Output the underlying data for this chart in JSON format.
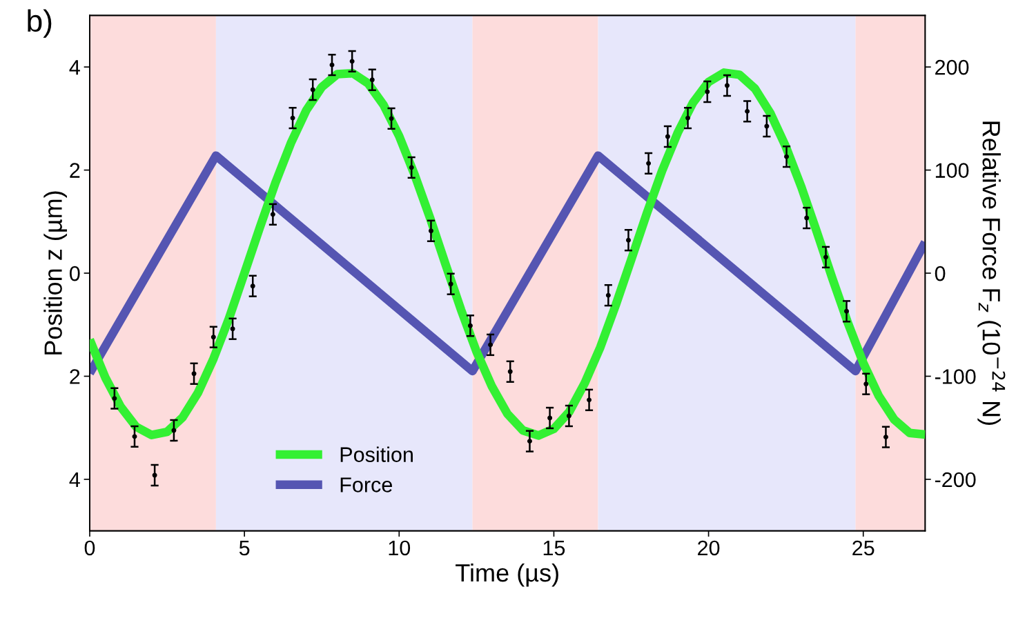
{
  "chart_data": {
    "type": "line",
    "xlabel": "Time (µs)",
    "ylabel": "Position z (µm)",
    "y2label": "Relative Force F$_{z}$ (10$^{−24}$ N)",
    "annotations": [
      "b)"
    ],
    "xlim": [
      0,
      27
    ],
    "xticks": [
      0,
      5,
      10,
      15,
      20,
      25
    ],
    "ylim": [
      -5,
      5
    ],
    "yticks": [
      {
        "value": -4,
        "label": "4"
      },
      {
        "value": -2,
        "label": "2"
      },
      0,
      2,
      4
    ],
    "y2lim": [
      -250,
      250
    ],
    "y2ticks": [
      -200,
      -100,
      0,
      100,
      200
    ],
    "grid": false,
    "legend": "bottom left",
    "line_style": "solid",
    "marker": "none",
    "bands": [
      {
        "axis": "x",
        "from": 0,
        "to": 4.08,
        "color": "#fddcdc"
      },
      {
        "axis": "x",
        "from": 4.08,
        "to": 12.37,
        "color": "#e7e7fb"
      },
      {
        "axis": "x",
        "from": 12.37,
        "to": 16.43,
        "color": "#fddcdc"
      },
      {
        "axis": "x",
        "from": 16.43,
        "to": 24.75,
        "color": "#e7e7fb"
      },
      {
        "axis": "x",
        "from": 24.75,
        "to": 27,
        "color": "#fddcdc"
      }
    ],
    "series": [
      {
        "name": "Position",
        "type": "line",
        "color": "#33f033",
        "x": [
          0,
          0.5,
          1,
          1.5,
          2,
          2.5,
          3,
          3.5,
          4,
          4.5,
          5,
          5.5,
          6,
          6.5,
          7,
          7.5,
          8,
          8.5,
          9,
          9.5,
          10,
          10.5,
          11,
          11.5,
          12,
          12.5,
          13,
          13.5,
          14,
          14.5,
          15,
          15.5,
          16,
          16.5,
          17,
          17.5,
          18,
          18.5,
          19,
          19.5,
          20,
          20.5,
          21,
          21.5,
          22,
          22.5,
          23,
          23.5,
          24,
          24.5,
          25,
          25.5,
          26,
          26.5,
          27
        ],
        "values": [
          -1.29,
          -2.02,
          -2.59,
          -2.98,
          -3.14,
          -3.08,
          -2.8,
          -2.32,
          -1.66,
          -0.88,
          0.0,
          0.89,
          1.75,
          2.52,
          3.16,
          3.61,
          3.86,
          3.88,
          3.68,
          3.26,
          2.66,
          1.91,
          1.07,
          0.17,
          -0.71,
          -1.52,
          -2.2,
          -2.73,
          -3.05,
          -3.15,
          -3.02,
          -2.69,
          -2.13,
          -1.44,
          -0.62,
          0.26,
          1.15,
          1.99,
          2.72,
          3.31,
          3.71,
          3.89,
          3.85,
          3.58,
          3.1,
          2.45,
          1.67,
          0.8,
          -0.1,
          -0.96,
          -1.74,
          -2.38,
          -2.84,
          -3.1,
          -3.13
        ]
      },
      {
        "type": "scatter",
        "color": "#000000",
        "x": [
          0.8,
          1.45,
          2.1,
          2.72,
          3.37,
          4.0,
          4.62,
          5.27,
          5.92,
          6.56,
          7.21,
          7.83,
          8.48,
          9.13,
          9.75,
          10.4,
          11.03,
          11.67,
          12.3,
          12.95,
          13.59,
          14.22,
          14.87,
          15.49,
          16.14,
          16.76,
          17.41,
          18.06,
          18.68,
          19.33,
          19.96,
          20.6,
          21.25,
          21.88,
          22.52,
          23.17,
          23.79,
          24.46,
          25.09,
          25.73
        ],
        "values": [
          -2.43,
          -3.17,
          -3.92,
          -3.05,
          -1.95,
          -1.24,
          -1.08,
          -0.25,
          1.14,
          3.01,
          3.56,
          4.04,
          4.11,
          3.75,
          3.0,
          2.05,
          0.82,
          -0.21,
          -1.02,
          -1.39,
          -1.91,
          -3.26,
          -2.81,
          -2.77,
          -2.46,
          -0.43,
          0.64,
          2.13,
          2.65,
          3.01,
          3.52,
          3.64,
          3.14,
          2.85,
          2.26,
          1.07,
          0.31,
          -0.74,
          -2.15,
          -3.18
        ],
        "errors": [
          0.2,
          0.2,
          0.2,
          0.2,
          0.2,
          0.2,
          0.2,
          0.2,
          0.2,
          0.2,
          0.2,
          0.2,
          0.2,
          0.2,
          0.2,
          0.2,
          0.2,
          0.2,
          0.2,
          0.2,
          0.2,
          0.2,
          0.2,
          0.2,
          0.2,
          0.2,
          0.2,
          0.2,
          0.2,
          0.2,
          0.2,
          0.2,
          0.2,
          0.2,
          0.2,
          0.2,
          0.2,
          0.2,
          0.2,
          0.2
        ]
      },
      {
        "name": "Force",
        "type": "line",
        "axis": "y2",
        "color": "#5555b2",
        "x": [
          0,
          4.08,
          12.37,
          16.43,
          24.75,
          27
        ],
        "values": [
          -97,
          114,
          -95,
          114,
          -95,
          30
        ]
      }
    ]
  }
}
